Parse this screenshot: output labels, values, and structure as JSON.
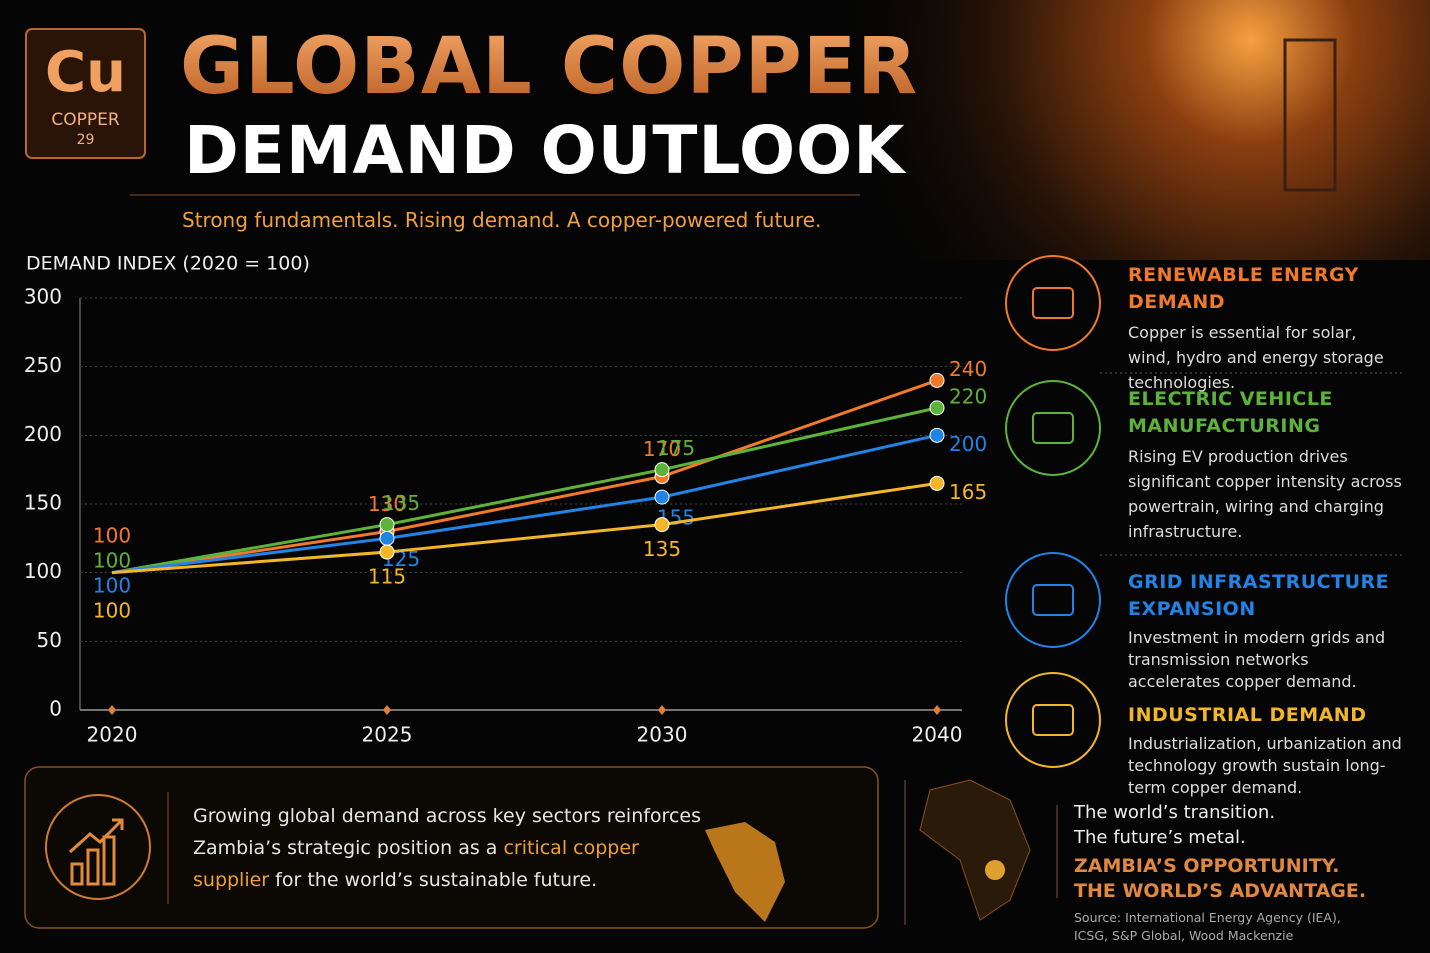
{
  "header": {
    "symbol": "Cu",
    "element": "COPPER",
    "number": 29,
    "title_line1": "GLOBAL COPPER",
    "title_line2": "DEMAND OUTLOOK",
    "tagline": "Strong fundamentals. Rising demand. A copper-powered future."
  },
  "chart_data": {
    "type": "line",
    "y_label": "DEMAND INDEX (2020 = 100)",
    "categories": [
      "2020",
      "2025",
      "2030",
      "2040"
    ],
    "series": [
      {
        "name": "RENEWABLE ENERGY DEMAND",
        "color": "#f07a2a",
        "values": [
          100,
          130,
          170,
          240
        ],
        "description": "Copper is essential for solar, wind, hydro and energy storage technologies."
      },
      {
        "name": "ELECTRIC VEHICLE MANUFACTURING",
        "color": "#5db33a",
        "values": [
          100,
          135,
          175,
          220
        ],
        "description": "Rising EV production drives significant copper intensity across powertrain, wiring and charging infrastructure."
      },
      {
        "name": "GRID INFRASTRUCTURE EXPANSION",
        "color": "#2283e6",
        "values": [
          100,
          125,
          155,
          200
        ],
        "description": "Investment in modern grids and transmission networks accelerates copper demand."
      },
      {
        "name": "INDUSTRIAL DEMAND",
        "color": "#f2b626",
        "values": [
          100,
          115,
          135,
          165
        ],
        "description": "Industrialization, urbanization and technology growth sustain long-term copper demand."
      }
    ],
    "ylim": [
      0,
      300
    ],
    "yticks": [
      0,
      50,
      100,
      150,
      200,
      250,
      300
    ],
    "grid": true
  },
  "footer": {
    "message_before": "Growing global demand across key sectors reinforces Zambia’s strategic position as a ",
    "highlight": "critical copper supplier",
    "message_after": " for the world’s sustainable future.",
    "transition_1": "The world’s transition.",
    "transition_2": "The future’s metal.",
    "opportunity_1": "ZAMBIA’S OPPORTUNITY.",
    "opportunity_2": "THE WORLD’S ADVANTAGE.",
    "source": "Source: International Energy Agency (IEA), ICSG, S&P Global, Wood Mackenzie"
  }
}
